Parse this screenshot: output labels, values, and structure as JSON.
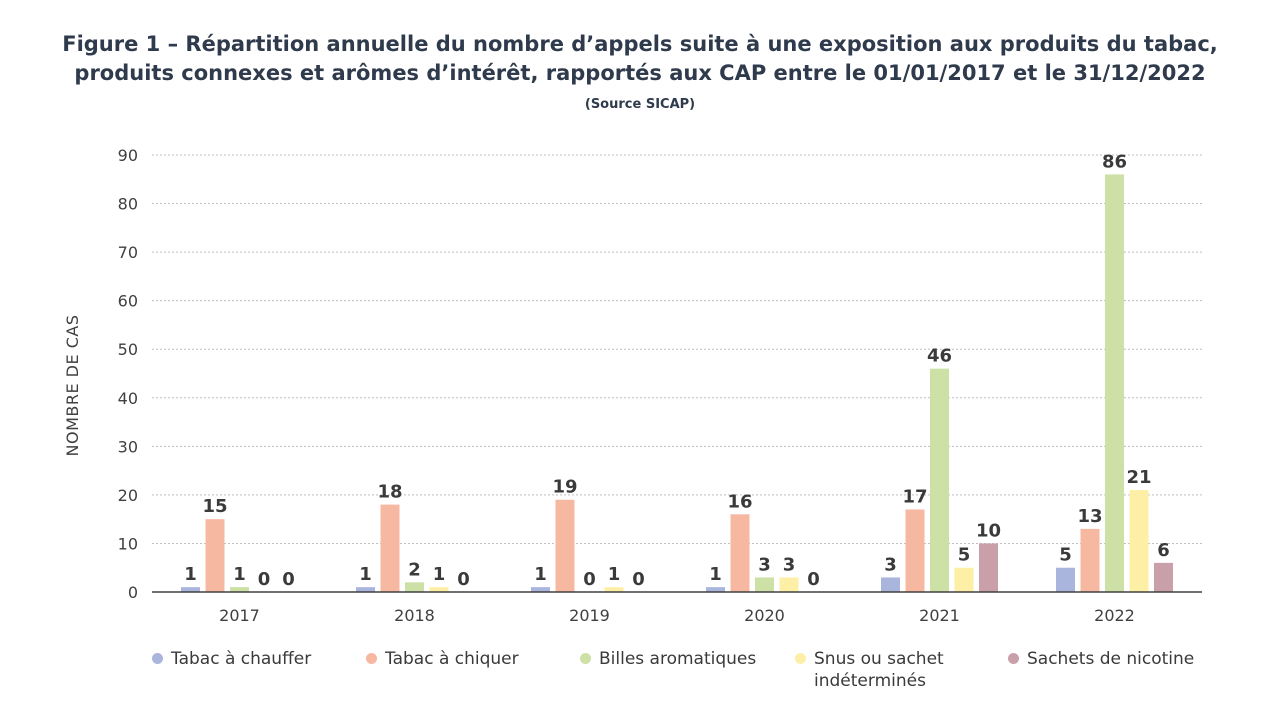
{
  "header": {
    "title_line1": "Figure 1 – Répartition annuelle du nombre d’appels suite à une exposition aux produits du tabac,",
    "title_line2": "produits connexes et arômes d’intérêt, rapportés aux CAP entre le 01/01/2017 et le 31/12/2022",
    "subtitle": "(Source SICAP)"
  },
  "chart_data": {
    "type": "bar",
    "title": "Figure 1 – Répartition annuelle du nombre d’appels suite à une exposition aux produits du tabac, produits connexes et arômes d’intérêt, rapportés aux CAP entre le 01/01/2017 et le 31/12/2022",
    "subtitle": "(Source SICAP)",
    "xlabel": "",
    "ylabel": "NOMBRE DE CAS",
    "ylim": [
      0,
      90
    ],
    "yticks": [
      0,
      10,
      20,
      30,
      40,
      50,
      60,
      70,
      80,
      90
    ],
    "grid": true,
    "legend_position": "bottom",
    "categories": [
      "2017",
      "2018",
      "2019",
      "2020",
      "2021",
      "2022"
    ],
    "series": [
      {
        "name": "Tabac à chauffer",
        "color": "#aab5dd",
        "values": [
          1,
          1,
          1,
          1,
          3,
          5
        ]
      },
      {
        "name": "Tabac à chiquer",
        "color": "#f7b8a2",
        "values": [
          15,
          18,
          19,
          16,
          17,
          13
        ]
      },
      {
        "name": "Billes aromatiques",
        "color": "#cde0a6",
        "values": [
          1,
          2,
          0,
          3,
          46,
          86
        ]
      },
      {
        "name": "Snus ou sachet indéterminés",
        "color": "#fdf0a6",
        "values": [
          0,
          1,
          1,
          3,
          5,
          21
        ]
      },
      {
        "name": "Sachets de nicotine",
        "color": "#c9a0aa",
        "values": [
          0,
          0,
          0,
          0,
          10,
          6
        ]
      }
    ]
  },
  "legend": {
    "items": [
      {
        "line1": "Tabac à chauffer",
        "line2": "",
        "color": "#aab5dd"
      },
      {
        "line1": "Tabac à chiquer",
        "line2": "",
        "color": "#f7b8a2"
      },
      {
        "line1": "Billes aromatiques",
        "line2": "",
        "color": "#cde0a6"
      },
      {
        "line1": "Snus ou sachet",
        "line2": "indéterminés",
        "color": "#fdf0a6"
      },
      {
        "line1": "Sachets de nicotine",
        "line2": "",
        "color": "#c9a0aa"
      }
    ]
  }
}
